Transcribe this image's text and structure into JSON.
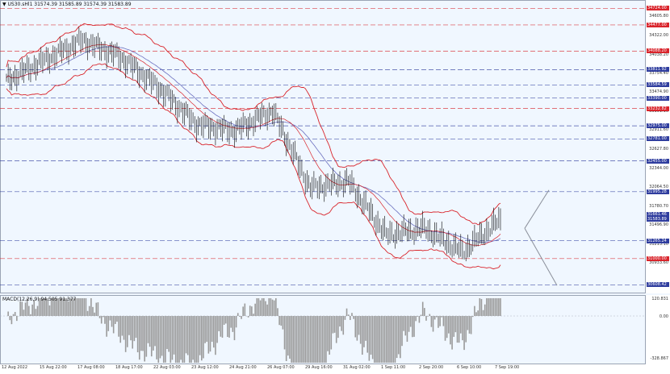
{
  "header": {
    "symbol_line": "▼ US30.sHl1  31574.39 31585.89 31574.39 31583.89"
  },
  "macd": {
    "label": "MACD(12,26,9) 94.505 91.377",
    "axis_ticks": [
      "120.831",
      "0.00",
      "-328.867"
    ]
  },
  "price_axis": {
    "ticks": [
      "34605.80",
      "34322.00",
      "34038.20",
      "33754.40",
      "33474.90",
      "33191.10",
      "32911.60",
      "32627.80",
      "32344.00",
      "32064.50",
      "31780.70",
      "31496.90",
      "31213.10",
      "30933.60"
    ],
    "levels": [
      {
        "text": "34724.00",
        "color": "#d9242b"
      },
      {
        "text": "34477.00",
        "color": "#d9242b"
      },
      {
        "text": "34088.20",
        "color": "#d9242b"
      },
      {
        "text": "33811.92",
        "color": "#2f3d9e"
      },
      {
        "text": "33584.59",
        "color": "#2f3d9e"
      },
      {
        "text": "33390.00",
        "color": "#2f3d9e"
      },
      {
        "text": "33232.82",
        "color": "#d9242b"
      },
      {
        "text": "32975.00",
        "color": "#2f3d9e"
      },
      {
        "text": "32781.00",
        "color": "#2f3d9e"
      },
      {
        "text": "32455.00",
        "color": "#2f3d9e"
      },
      {
        "text": "31995.28",
        "color": "#2f3d9e"
      },
      {
        "text": "31661.46",
        "color": "#2f3d9e"
      },
      {
        "text": "31583.89",
        "color": "#2f3d9e"
      },
      {
        "text": "31265.24",
        "color": "#2f3d9e"
      },
      {
        "text": "31000.00",
        "color": "#d9242b"
      },
      {
        "text": "30608.42",
        "color": "#2f3d9e"
      }
    ]
  },
  "time_axis": {
    "labels": [
      "12 Aug 2022",
      "15 Aug 22:00",
      "17 Aug 08:00",
      "18 Aug 17:00",
      "22 Aug 03:00",
      "23 Aug 12:00",
      "24 Aug 21:00",
      "26 Aug 07:00",
      "29 Aug 16:00",
      "31 Aug 02:00",
      "1 Sep 11:00",
      "2 Sep 20:00",
      "6 Sep 10:00",
      "7 Sep 19:00"
    ]
  },
  "chart_data": {
    "type": "line",
    "symbol": "US30.sHl1",
    "ylim": [
      30530,
      34800
    ],
    "last_price": 31583.89,
    "horizontal_levels": [
      34724.0,
      34477.0,
      34088.2,
      33811.92,
      33584.59,
      33390.0,
      33232.82,
      32975.0,
      32781.0,
      32455.0,
      31995.28,
      31265.24,
      31000.0,
      30608.42
    ],
    "x": [
      "12 Aug 2022",
      "15 Aug 22:00",
      "17 Aug 08:00",
      "18 Aug 17:00",
      "22 Aug 03:00",
      "23 Aug 12:00",
      "24 Aug 21:00",
      "26 Aug 07:00",
      "29 Aug 16:00",
      "31 Aug 02:00",
      "1 Sep 11:00",
      "2 Sep 20:00",
      "6 Sep 10:00",
      "7 Sep 19:00"
    ],
    "series": [
      {
        "values": [
          33650,
          33950,
          34250,
          34000,
          33550,
          33000,
          32900,
          33200,
          32050,
          32150,
          31350,
          31450,
          31100,
          31584
        ]
      }
    ],
    "colors": {
      "price": "#000000",
      "bands": "#d9242b",
      "ma": "#6b6fbf",
      "support": "#2f3d9e",
      "resistance": "#d9242b",
      "arrow": "#8a8f9a",
      "histogram": "#9a9a9a"
    }
  }
}
